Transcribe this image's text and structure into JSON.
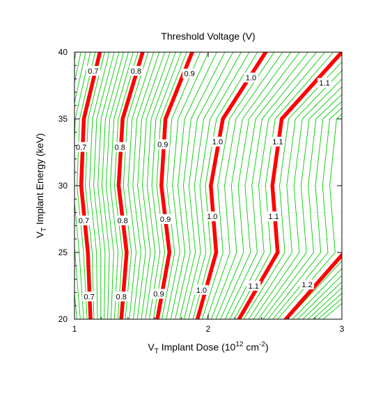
{
  "chart_data": {
    "type": "contour",
    "title": "Threshold Voltage (V)",
    "xlabel": {
      "prefix": "V",
      "sub": "T",
      "text": " Implant Dose (10",
      "sup": "12",
      "unit": " cm",
      "unit_sup": "-2",
      "close": ")"
    },
    "ylabel": {
      "prefix": "V",
      "sub": "T",
      "text": " Implant Energy (keV)"
    },
    "xlim": [
      1,
      3
    ],
    "ylim": [
      20,
      40
    ],
    "x_ticks": [
      1,
      2,
      3
    ],
    "x_tick_labels": [
      "1",
      "2",
      "3"
    ],
    "y_ticks": [
      20,
      25,
      30,
      35,
      40
    ],
    "y_tick_labels": [
      "20",
      "25",
      "30",
      "35",
      "40"
    ],
    "grid": true,
    "major_colors": {
      "major": "#ff0000",
      "minor": "#00cc00"
    },
    "energies": [
      20,
      25,
      30,
      35,
      40
    ],
    "major_contours": [
      {
        "level": "0.7",
        "dose": [
          1.12,
          1.1,
          1.05,
          1.07,
          1.19
        ]
      },
      {
        "level": "0.8",
        "dose": [
          1.35,
          1.39,
          1.33,
          1.36,
          1.51
        ]
      },
      {
        "level": "0.9",
        "dose": [
          1.62,
          1.71,
          1.65,
          1.68,
          1.88
        ]
      },
      {
        "level": "1.0",
        "dose": [
          1.92,
          2.06,
          2.02,
          2.11,
          2.43
        ]
      },
      {
        "level": "1.1",
        "dose": [
          2.23,
          2.52,
          2.48,
          2.55,
          3.0
        ]
      },
      {
        "level": "1.2",
        "dose": [
          2.58,
          3.0
        ]
      }
    ],
    "major_contour_12_energy": [
      20,
      24.8
    ],
    "label_positions": [
      {
        "text": "0.7",
        "dose": 1.14,
        "energy": 38.6
      },
      {
        "text": "0.8",
        "dose": 1.46,
        "energy": 38.6
      },
      {
        "text": "0.9",
        "dose": 1.86,
        "energy": 38.4
      },
      {
        "text": "1.0",
        "dose": 2.32,
        "energy": 38.1
      },
      {
        "text": "1.1",
        "dose": 2.87,
        "energy": 37.7
      },
      {
        "text": "0.7",
        "dose": 1.05,
        "energy": 32.9
      },
      {
        "text": "0.8",
        "dose": 1.34,
        "energy": 32.9
      },
      {
        "text": "0.9",
        "dose": 1.66,
        "energy": 33.1
      },
      {
        "text": "1.0",
        "dose": 2.07,
        "energy": 33.3
      },
      {
        "text": "1.1",
        "dose": 2.52,
        "energy": 33.3
      },
      {
        "text": "0.7",
        "dose": 1.07,
        "energy": 27.4
      },
      {
        "text": "0.8",
        "dose": 1.36,
        "energy": 27.4
      },
      {
        "text": "0.9",
        "dose": 1.68,
        "energy": 27.5
      },
      {
        "text": "1.0",
        "dose": 2.03,
        "energy": 27.7
      },
      {
        "text": "1.1",
        "dose": 2.49,
        "energy": 27.7
      },
      {
        "text": "0.7",
        "dose": 1.11,
        "energy": 21.7
      },
      {
        "text": "0.8",
        "dose": 1.35,
        "energy": 21.7
      },
      {
        "text": "0.9",
        "dose": 1.63,
        "energy": 21.9
      },
      {
        "text": "1.0",
        "dose": 1.95,
        "energy": 22.2
      },
      {
        "text": "1.1",
        "dose": 2.34,
        "energy": 22.5
      },
      {
        "text": "1.2",
        "dose": 2.74,
        "energy": 22.6
      }
    ],
    "minor_contour_count": 46
  }
}
